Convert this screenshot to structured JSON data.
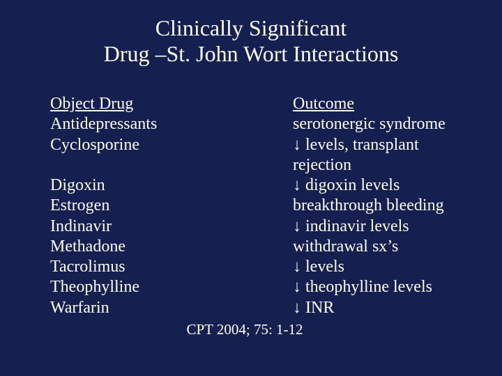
{
  "background_color": "#162050",
  "text_color": "#ffffff",
  "font_family": "Times New Roman",
  "title": {
    "line1": "Clinically Significant",
    "line2": "Drug –St. John Wort Interactions",
    "fontsize": 32
  },
  "headers": {
    "left": "Object Drug",
    "right": "Outcome"
  },
  "rows": [
    {
      "drug": "Antidepressants",
      "outcome": "serotonergic syndrome"
    },
    {
      "drug": "Cyclosporine",
      "outcome": "↓ levels, transplant rejection"
    },
    {
      "drug": "Digoxin",
      "outcome": "↓ digoxin levels"
    },
    {
      "drug": "Estrogen",
      "outcome": "breakthrough bleeding"
    },
    {
      "drug": "Indinavir",
      "outcome": "↓ indinavir levels"
    },
    {
      "drug": "Methadone",
      "outcome": "withdrawal sx’s"
    },
    {
      "drug": "Tacrolimus",
      "outcome": "↓ levels"
    },
    {
      "drug": "Theophylline",
      "outcome": "↓ theophylline levels"
    },
    {
      "drug": "Warfarin",
      "outcome": "↓ INR"
    }
  ],
  "citation": "CPT 2004; 75: 1-12",
  "body_fontsize": 24,
  "citation_fontsize": 21
}
